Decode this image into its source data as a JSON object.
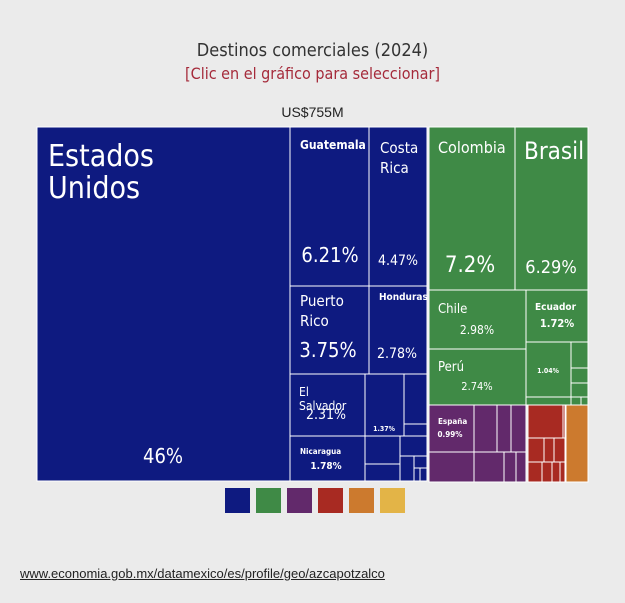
{
  "title": "Destinos comerciales (2024)",
  "subtitle": "[Clic en el gráfico para seleccionar]",
  "total_label": "US$755M",
  "source_link": "www.economia.gob.mx/datamexico/es/profile/geo/azcapotzalco",
  "colors": {
    "america_norte": "#0e1a80",
    "america_sur": "#3f8a46",
    "europa": "#62296b",
    "asia": "#a82a22",
    "africa": "#cc7a2e",
    "oceania": "#e3b447"
  },
  "legend": [
    "america_norte",
    "america_sur",
    "europa",
    "asia",
    "africa",
    "oceania"
  ],
  "chart_data": {
    "type": "treemap",
    "title": "Destinos comerciales (2024)",
    "total": "US$755M",
    "labeled_items": [
      {
        "name": "Estados Unidos",
        "value": 46,
        "label": "46%",
        "group": "america_norte"
      },
      {
        "name": "Guatemala",
        "value": 6.21,
        "label": "6.21%",
        "group": "america_norte"
      },
      {
        "name": "Costa Rica",
        "value": 4.47,
        "label": "4.47%",
        "group": "america_norte"
      },
      {
        "name": "Puerto Rico",
        "value": 3.75,
        "label": "3.75%",
        "group": "america_norte"
      },
      {
        "name": "Honduras",
        "value": 2.78,
        "label": "2.78%",
        "group": "america_norte"
      },
      {
        "name": "El Salvador",
        "value": 2.31,
        "label": "2.31%",
        "group": "america_norte"
      },
      {
        "name": "",
        "value": 1.37,
        "label": "1.37%",
        "group": "america_norte"
      },
      {
        "name": "Nicaragua",
        "value": 1.78,
        "label": "1.78%",
        "group": "america_norte"
      },
      {
        "name": "Colombia",
        "value": 7.2,
        "label": "7.2%",
        "group": "america_sur"
      },
      {
        "name": "Brasil",
        "value": 6.29,
        "label": "6.29%",
        "group": "america_sur"
      },
      {
        "name": "Chile",
        "value": 2.98,
        "label": "2.98%",
        "group": "america_sur"
      },
      {
        "name": "Ecuador",
        "value": 1.72,
        "label": "1.72%",
        "group": "america_sur"
      },
      {
        "name": "Perú",
        "value": 2.74,
        "label": "2.74%",
        "group": "america_sur"
      },
      {
        "name": "",
        "value": 1.04,
        "label": "1.04%",
        "group": "america_sur"
      },
      {
        "name": "España",
        "value": 0.99,
        "label": "0.99%",
        "group": "europa"
      }
    ],
    "unlabeled_groups": [
      "asia",
      "africa"
    ]
  }
}
